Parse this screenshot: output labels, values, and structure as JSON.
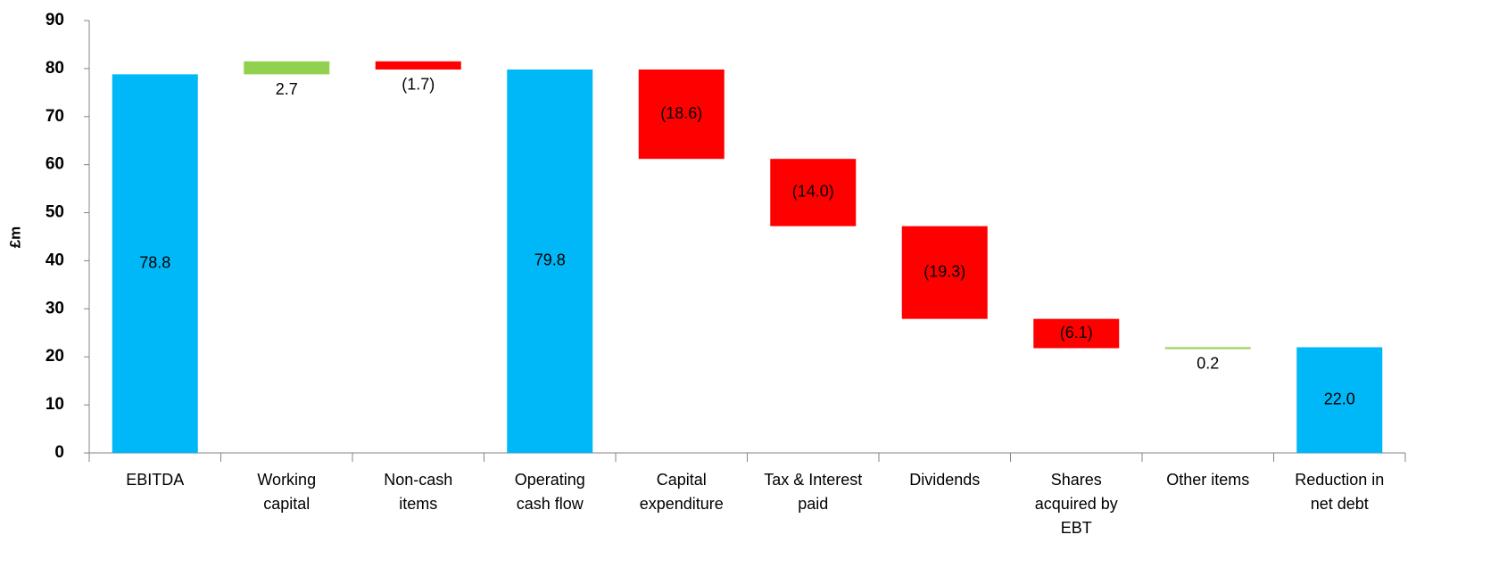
{
  "chart_data": {
    "type": "waterfall",
    "y_label": "£m",
    "categories": [
      "EBITDA",
      "Working capital",
      "Non-cash items",
      "Operating cash flow",
      "Capital expenditure",
      "Tax & Interest paid",
      "Dividends",
      "Shares acquired by EBT",
      "Other items",
      "Reduction in net debt"
    ],
    "values": [
      78.8,
      2.7,
      -1.7,
      79.8,
      -18.6,
      -14.0,
      -19.3,
      -6.1,
      0.2,
      22.0
    ],
    "value_labels": [
      "78.8",
      "2.7",
      "(1.7)",
      "79.8",
      "(18.6)",
      "(14.0)",
      "(19.3)",
      "(6.1)",
      "0.2",
      "22.0"
    ],
    "is_total": [
      true,
      false,
      false,
      true,
      false,
      false,
      false,
      false,
      false,
      true
    ],
    "total_color": "#00b8f8",
    "increase_color": "#92d050",
    "decrease_color": "#ff0000",
    "ylim": [
      0,
      90
    ],
    "yticks": [
      0,
      10,
      20,
      30,
      40,
      50,
      60,
      70,
      80,
      90
    ],
    "grid": false
  }
}
